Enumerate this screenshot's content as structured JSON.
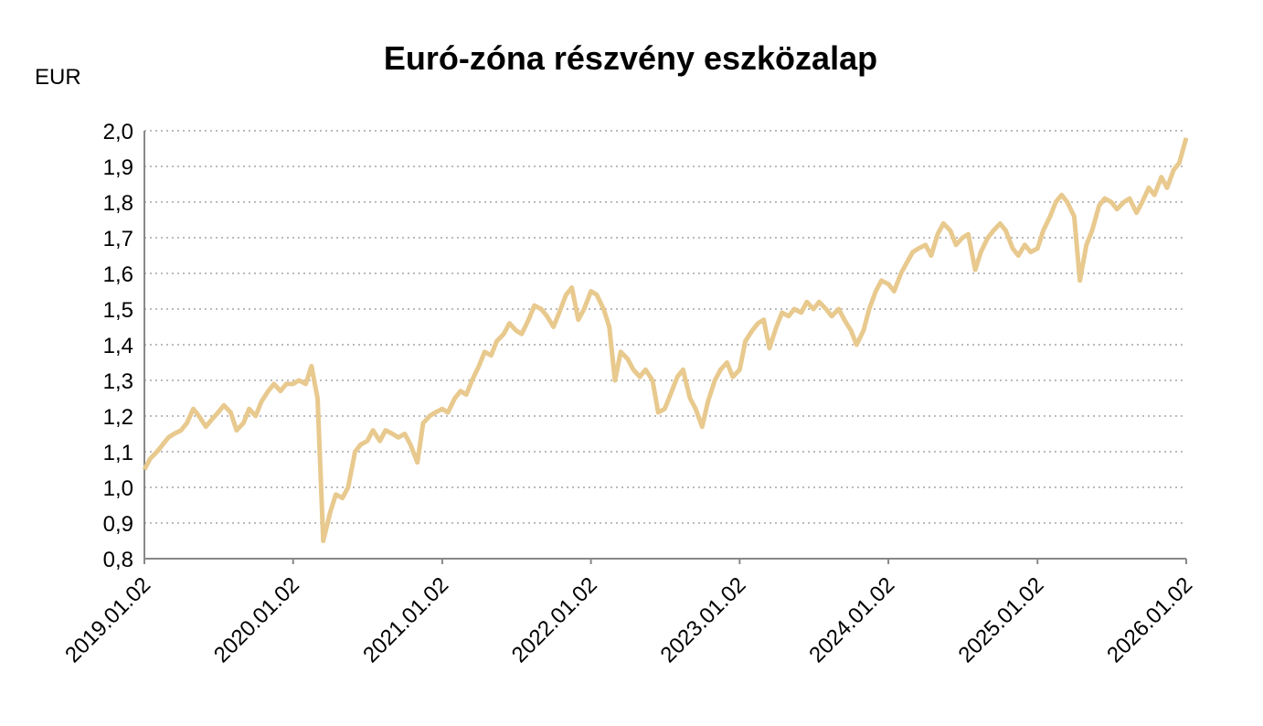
{
  "chart_data": {
    "type": "line",
    "title": "Euró-zóna részvény eszközalap",
    "y_label": "EUR",
    "x": [
      "2019.01.02",
      "2019.01.16",
      "2019.02.02",
      "2019.02.16",
      "2019.03.02",
      "2019.03.16",
      "2019.04.02",
      "2019.04.16",
      "2019.05.02",
      "2019.05.16",
      "2019.06.02",
      "2019.06.16",
      "2019.07.02",
      "2019.07.16",
      "2019.08.02",
      "2019.08.16",
      "2019.09.02",
      "2019.09.16",
      "2019.10.02",
      "2019.10.16",
      "2019.11.02",
      "2019.11.16",
      "2019.12.02",
      "2019.12.16",
      "2020.01.02",
      "2020.01.16",
      "2020.02.02",
      "2020.02.16",
      "2020.03.02",
      "2020.03.16",
      "2020.04.02",
      "2020.04.16",
      "2020.05.02",
      "2020.05.16",
      "2020.06.02",
      "2020.06.16",
      "2020.07.02",
      "2020.07.16",
      "2020.08.02",
      "2020.08.16",
      "2020.09.02",
      "2020.09.16",
      "2020.10.02",
      "2020.10.16",
      "2020.11.02",
      "2020.11.16",
      "2020.12.02",
      "2020.12.16",
      "2021.01.02",
      "2021.01.16",
      "2021.02.02",
      "2021.02.16",
      "2021.03.02",
      "2021.03.16",
      "2021.04.02",
      "2021.04.16",
      "2021.05.02",
      "2021.05.16",
      "2021.06.02",
      "2021.06.16",
      "2021.07.02",
      "2021.07.16",
      "2021.08.02",
      "2021.08.16",
      "2021.09.02",
      "2021.09.16",
      "2021.10.02",
      "2021.10.16",
      "2021.11.02",
      "2021.11.16",
      "2021.12.02",
      "2021.12.16",
      "2022.01.02",
      "2022.01.16",
      "2022.02.02",
      "2022.02.16",
      "2022.03.02",
      "2022.03.16",
      "2022.04.02",
      "2022.04.16",
      "2022.05.02",
      "2022.05.16",
      "2022.06.02",
      "2022.06.16",
      "2022.07.02",
      "2022.07.16",
      "2022.08.02",
      "2022.08.16",
      "2022.09.02",
      "2022.09.16",
      "2022.10.02",
      "2022.10.16",
      "2022.11.02",
      "2022.11.16",
      "2022.12.02",
      "2022.12.16",
      "2023.01.02",
      "2023.01.16",
      "2023.02.02",
      "2023.02.16",
      "2023.03.02",
      "2023.03.16",
      "2023.04.02",
      "2023.04.16",
      "2023.05.02",
      "2023.05.16",
      "2023.06.02",
      "2023.06.16",
      "2023.07.02",
      "2023.07.16",
      "2023.08.02",
      "2023.08.16",
      "2023.09.02",
      "2023.09.16",
      "2023.10.02",
      "2023.10.16",
      "2023.11.02",
      "2023.11.16",
      "2023.12.02",
      "2023.12.16",
      "2024.01.02",
      "2024.01.16",
      "2024.02.02",
      "2024.02.16",
      "2024.03.02",
      "2024.03.16",
      "2024.04.02",
      "2024.04.16",
      "2024.05.02",
      "2024.05.16",
      "2024.06.02",
      "2024.06.16",
      "2024.07.02",
      "2024.07.16",
      "2024.08.02",
      "2024.08.16",
      "2024.09.02",
      "2024.09.16",
      "2024.10.02",
      "2024.10.16",
      "2024.11.02",
      "2024.11.16",
      "2024.12.02",
      "2024.12.16",
      "2025.01.02",
      "2025.01.16",
      "2025.02.02",
      "2025.02.16",
      "2025.03.02",
      "2025.03.16",
      "2025.04.02",
      "2025.04.16",
      "2025.05.02",
      "2025.05.16",
      "2025.06.02",
      "2025.06.16",
      "2025.07.02",
      "2025.07.16",
      "2025.08.02",
      "2025.08.16",
      "2025.09.02",
      "2025.09.16",
      "2025.10.02",
      "2025.10.16",
      "2025.11.02",
      "2025.11.16",
      "2025.12.02",
      "2025.12.16",
      "2026.01.02"
    ],
    "values": [
      1.05,
      1.08,
      1.1,
      1.12,
      1.14,
      1.15,
      1.16,
      1.18,
      1.22,
      1.2,
      1.17,
      1.19,
      1.21,
      1.23,
      1.21,
      1.16,
      1.18,
      1.22,
      1.2,
      1.24,
      1.27,
      1.29,
      1.27,
      1.29,
      1.29,
      1.3,
      1.29,
      1.34,
      1.25,
      0.85,
      0.93,
      0.98,
      0.97,
      1.0,
      1.1,
      1.12,
      1.13,
      1.16,
      1.13,
      1.16,
      1.15,
      1.14,
      1.15,
      1.12,
      1.07,
      1.18,
      1.2,
      1.21,
      1.22,
      1.21,
      1.25,
      1.27,
      1.26,
      1.3,
      1.34,
      1.38,
      1.37,
      1.41,
      1.43,
      1.46,
      1.44,
      1.43,
      1.47,
      1.51,
      1.5,
      1.48,
      1.45,
      1.49,
      1.54,
      1.56,
      1.47,
      1.5,
      1.55,
      1.54,
      1.5,
      1.45,
      1.3,
      1.38,
      1.36,
      1.33,
      1.31,
      1.33,
      1.3,
      1.21,
      1.22,
      1.26,
      1.31,
      1.33,
      1.25,
      1.22,
      1.17,
      1.24,
      1.3,
      1.33,
      1.35,
      1.31,
      1.33,
      1.41,
      1.44,
      1.46,
      1.47,
      1.39,
      1.45,
      1.49,
      1.48,
      1.5,
      1.49,
      1.52,
      1.5,
      1.52,
      1.5,
      1.48,
      1.5,
      1.47,
      1.44,
      1.4,
      1.44,
      1.5,
      1.55,
      1.58,
      1.57,
      1.55,
      1.6,
      1.63,
      1.66,
      1.67,
      1.68,
      1.65,
      1.71,
      1.74,
      1.72,
      1.68,
      1.7,
      1.71,
      1.61,
      1.66,
      1.7,
      1.72,
      1.74,
      1.72,
      1.67,
      1.65,
      1.68,
      1.66,
      1.67,
      1.72,
      1.76,
      1.8,
      1.82,
      1.8,
      1.76,
      1.58,
      1.68,
      1.72,
      1.79,
      1.81,
      1.8,
      1.78,
      1.8,
      1.81,
      1.77,
      1.8,
      1.84,
      1.82,
      1.87,
      1.84,
      1.89,
      1.91,
      1.98
    ],
    "color": "#e8c98e",
    "xticks": [
      "2019.01.02",
      "2020.01.02",
      "2021.01.02",
      "2022.01.02",
      "2023.01.02",
      "2024.01.02",
      "2025.01.02",
      "2026.01.02"
    ],
    "ylim": [
      0.8,
      2.0
    ],
    "yticks": [
      {
        "value": 0.8,
        "label": "0,8"
      },
      {
        "value": 0.9,
        "label": "0,9"
      },
      {
        "value": 1.0,
        "label": "1,0"
      },
      {
        "value": 1.1,
        "label": "1,1"
      },
      {
        "value": 1.2,
        "label": "1,2"
      },
      {
        "value": 1.3,
        "label": "1,3"
      },
      {
        "value": 1.4,
        "label": "1,4"
      },
      {
        "value": 1.5,
        "label": "1,5"
      },
      {
        "value": 1.6,
        "label": "1,6"
      },
      {
        "value": 1.7,
        "label": "1,7"
      },
      {
        "value": 1.8,
        "label": "1,8"
      },
      {
        "value": 1.9,
        "label": "1,9"
      },
      {
        "value": 2.0,
        "label": "2,0"
      }
    ],
    "grid": true
  }
}
